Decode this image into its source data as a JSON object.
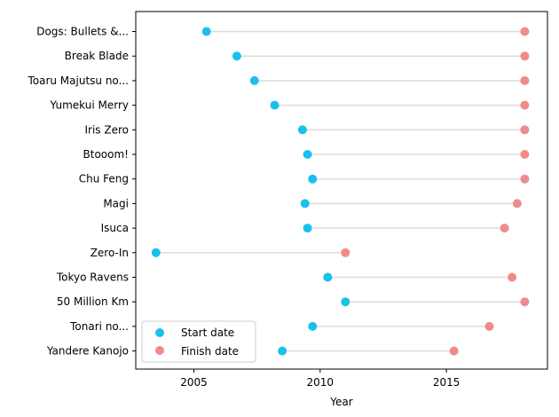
{
  "chart_data": {
    "type": "scatter",
    "title": "",
    "xlabel": "Year",
    "ylabel": "",
    "xlim": [
      2002.7,
      2019.0
    ],
    "xticks": [
      2005,
      2010,
      2015
    ],
    "grid": false,
    "legend_position": "lower-left",
    "categories": [
      "Dogs: Bullets &...",
      "Break Blade",
      "Toaru Majutsu no...",
      "Yumekui Merry",
      "Iris Zero",
      "Btooom!",
      "Chu Feng",
      "Magi",
      "Isuca",
      "Zero-In",
      "Tokyo Ravens",
      "50 Million Km",
      "Tonari no...",
      "Yandere Kanojo"
    ],
    "series": [
      {
        "name": "Start date",
        "color": "#1ac0ec",
        "values": [
          2005.5,
          2006.7,
          2007.4,
          2008.2,
          2009.3,
          2009.5,
          2009.7,
          2009.4,
          2009.5,
          2003.5,
          2010.3,
          2011.0,
          2009.7,
          2008.5
        ]
      },
      {
        "name": "Finish date",
        "color": "#f08b8c",
        "values": [
          2018.1,
          2018.1,
          2018.1,
          2018.1,
          2018.1,
          2018.1,
          2018.1,
          2017.8,
          2017.3,
          2011.0,
          2017.6,
          2018.1,
          2016.7,
          2015.3
        ]
      }
    ]
  }
}
